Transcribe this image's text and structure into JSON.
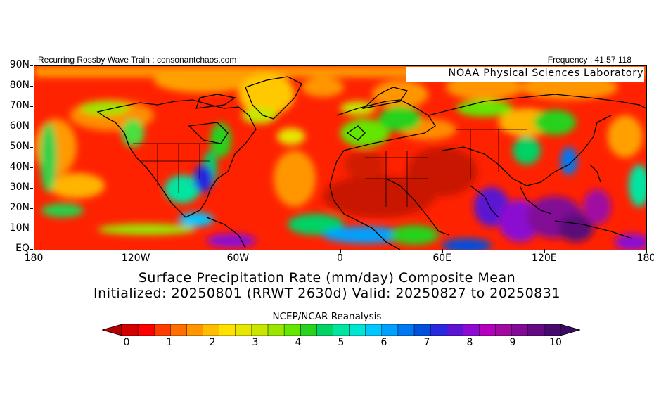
{
  "header": {
    "left_text": "Recurring Rossby Wave Train : consonantchaos.com",
    "right_text": "Frequency : 41 57 118",
    "lab_label": "NOAA Physical Sciences Laboratory"
  },
  "map": {
    "lat_labels": [
      "90N",
      "80N",
      "70N",
      "60N",
      "50N",
      "40N",
      "30N",
      "20N",
      "10N",
      "EQ"
    ],
    "lon_labels": [
      "180",
      "120W",
      "60W",
      "0",
      "60E",
      "120E",
      "180"
    ],
    "lat_range": [
      0,
      90
    ],
    "lon_range": [
      -180,
      180
    ]
  },
  "title": "Surface Precipitation Rate (mm/day) Composite Mean",
  "subtitle": "Initialized: 20250801 (RRWT 2630d) Valid: 20250827 to 20250831",
  "source": "NCEP/NCAR Reanalysis",
  "colorbar": {
    "labels": [
      "0",
      "1",
      "2",
      "3",
      "4",
      "5",
      "6",
      "7",
      "8",
      "9",
      "10"
    ],
    "min": 0,
    "max": 10,
    "colors": [
      "#d40000",
      "#ff0000",
      "#ff3c00",
      "#ff6e00",
      "#ff9600",
      "#ffbe00",
      "#ffe100",
      "#e6e600",
      "#c8e600",
      "#9be600",
      "#64e600",
      "#28d21e",
      "#00d264",
      "#00e6a0",
      "#00e6d2",
      "#00c8ff",
      "#00a0ff",
      "#0078f0",
      "#0050dc",
      "#2828dc",
      "#5a14d2",
      "#8c0ad2",
      "#b400be",
      "#a00aa0",
      "#820a96",
      "#640a82",
      "#460a6e"
    ],
    "under_color": "#b40000",
    "over_color": "#3c0a64"
  }
}
